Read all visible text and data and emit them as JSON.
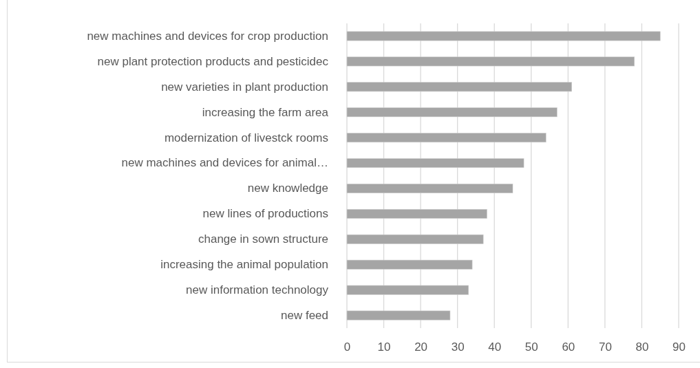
{
  "chart_data": {
    "type": "bar",
    "orientation": "horizontal",
    "categories": [
      "new machines and devices for crop production",
      "new plant protection products and pesticidec",
      "new varieties in plant production",
      "increasing the farm area",
      "modernization of livestck rooms",
      "new machines and devices for animal…",
      "new knowledge",
      "new lines of productions",
      "change in sown structure",
      "increasing the animal population",
      "new information technology",
      "new feed"
    ],
    "values": [
      85,
      78,
      61,
      57,
      54,
      48,
      45,
      38,
      37,
      34,
      33,
      28
    ],
    "color": "#a5a5a5",
    "xlim": [
      0,
      90
    ],
    "xticks": [
      0,
      10,
      20,
      30,
      40,
      50,
      60,
      70,
      80,
      90
    ],
    "grid": "x"
  }
}
